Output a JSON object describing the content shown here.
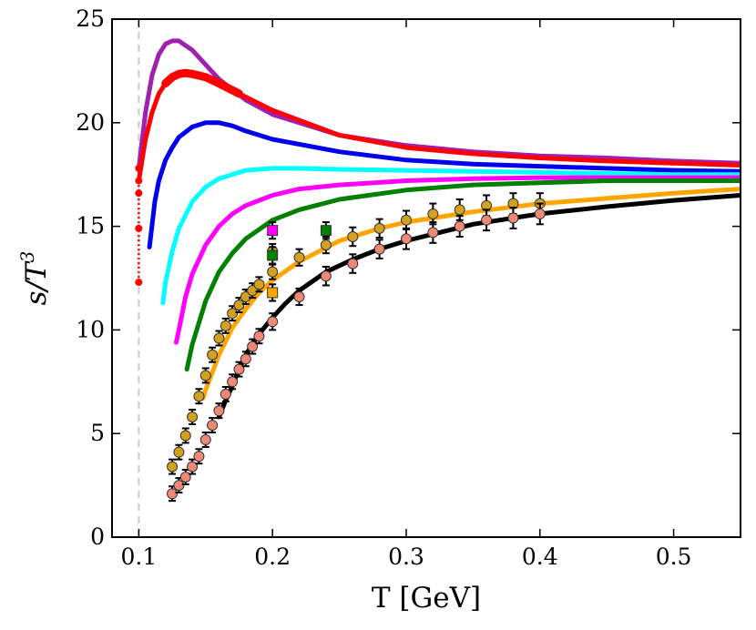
{
  "chart_data": {
    "type": "line",
    "xlabel": "T [GeV]",
    "ylabel": {
      "base": "s/T",
      "superscript": "3"
    },
    "xlim": [
      0.08,
      0.55
    ],
    "ylim": [
      0,
      25
    ],
    "xticks": [
      0.1,
      0.2,
      0.3,
      0.4,
      0.5
    ],
    "xtick_labels": [
      "0.1",
      "0.2",
      "0.3",
      "0.4",
      "0.5"
    ],
    "yticks": [
      0,
      5,
      10,
      15,
      20,
      25
    ],
    "ytick_labels": [
      "0",
      "5",
      "10",
      "15",
      "20",
      "25"
    ],
    "grid": false,
    "vline": {
      "x": 0.1,
      "color": "#cccccc",
      "style": "dashed"
    },
    "series": [
      {
        "color": "#a020b0",
        "width": 5,
        "x": [
          0.1,
          0.105,
          0.11,
          0.115,
          0.12,
          0.125,
          0.13,
          0.14,
          0.15,
          0.16,
          0.18,
          0.2,
          0.25,
          0.3,
          0.35,
          0.4,
          0.45,
          0.5,
          0.55
        ],
        "y": [
          17.8,
          20.5,
          22.3,
          23.3,
          23.8,
          23.95,
          23.95,
          23.5,
          22.8,
          22.1,
          21.1,
          20.4,
          19.4,
          18.9,
          18.6,
          18.4,
          18.3,
          18.15,
          18.05
        ]
      },
      {
        "color": "#ff0000",
        "width": 5,
        "x": [
          0.1,
          0.105,
          0.11,
          0.115,
          0.12,
          0.125,
          0.13,
          0.135,
          0.14,
          0.15,
          0.16,
          0.175,
          0.2,
          0.25,
          0.3,
          0.35,
          0.4,
          0.45,
          0.5,
          0.55
        ],
        "y": [
          17.2,
          19.2,
          20.5,
          21.4,
          21.9,
          22.2,
          22.35,
          22.4,
          22.35,
          22.2,
          21.9,
          21.4,
          20.6,
          19.4,
          18.8,
          18.5,
          18.3,
          18.15,
          18.05,
          17.95
        ]
      },
      {
        "color": "#ff0000",
        "width": 9,
        "x": [
          0.12,
          0.125,
          0.13,
          0.135,
          0.14,
          0.15,
          0.16,
          0.175
        ],
        "y": [
          21.9,
          22.2,
          22.35,
          22.4,
          22.35,
          22.2,
          21.9,
          21.4
        ]
      },
      {
        "color": "#0000ee",
        "width": 5,
        "x": [
          0.108,
          0.112,
          0.115,
          0.12,
          0.125,
          0.13,
          0.14,
          0.15,
          0.16,
          0.17,
          0.18,
          0.2,
          0.25,
          0.3,
          0.35,
          0.4,
          0.45,
          0.5,
          0.55
        ],
        "y": [
          14.0,
          16.2,
          17.2,
          18.2,
          18.8,
          19.3,
          19.8,
          20.0,
          20.0,
          19.85,
          19.6,
          19.2,
          18.6,
          18.2,
          18.0,
          17.9,
          17.8,
          17.7,
          17.65
        ]
      },
      {
        "color": "#00ffff",
        "width": 5,
        "x": [
          0.118,
          0.12,
          0.125,
          0.13,
          0.14,
          0.15,
          0.16,
          0.18,
          0.2,
          0.22,
          0.25,
          0.3,
          0.35,
          0.4,
          0.45,
          0.5,
          0.55
        ],
        "y": [
          11.3,
          12.3,
          13.8,
          14.9,
          16.2,
          16.9,
          17.3,
          17.7,
          17.8,
          17.8,
          17.75,
          17.7,
          17.65,
          17.6,
          17.55,
          17.5,
          17.5
        ]
      },
      {
        "color": "#ff00ff",
        "width": 5,
        "x": [
          0.128,
          0.13,
          0.135,
          0.14,
          0.15,
          0.16,
          0.17,
          0.18,
          0.2,
          0.22,
          0.25,
          0.3,
          0.35,
          0.4,
          0.45,
          0.5,
          0.55
        ],
        "y": [
          9.4,
          10.0,
          11.6,
          12.7,
          14.1,
          15.0,
          15.6,
          16.0,
          16.5,
          16.8,
          17.0,
          17.2,
          17.3,
          17.35,
          17.35,
          17.35,
          17.35
        ]
      },
      {
        "color": "#008000",
        "width": 5,
        "x": [
          0.136,
          0.14,
          0.15,
          0.16,
          0.17,
          0.18,
          0.2,
          0.22,
          0.25,
          0.3,
          0.35,
          0.4,
          0.45,
          0.5,
          0.55
        ],
        "y": [
          8.1,
          9.3,
          11.4,
          12.8,
          13.7,
          14.4,
          15.3,
          15.8,
          16.3,
          16.75,
          17.0,
          17.1,
          17.2,
          17.2,
          17.2
        ]
      },
      {
        "color": "#ffa500",
        "width": 5,
        "x": [
          0.148,
          0.15,
          0.16,
          0.17,
          0.18,
          0.19,
          0.2,
          0.22,
          0.25,
          0.28,
          0.3,
          0.35,
          0.4,
          0.45,
          0.5,
          0.55
        ],
        "y": [
          6.7,
          7.1,
          8.8,
          10.1,
          11.0,
          11.8,
          12.4,
          13.3,
          14.3,
          14.9,
          15.2,
          15.7,
          16.1,
          16.35,
          16.6,
          16.8
        ]
      },
      {
        "color": "#000000",
        "width": 5,
        "x": [
          0.16,
          0.165,
          0.17,
          0.175,
          0.18,
          0.19,
          0.2,
          0.21,
          0.22,
          0.24,
          0.26,
          0.28,
          0.3,
          0.35,
          0.4,
          0.45,
          0.5,
          0.55
        ],
        "y": [
          5.8,
          6.6,
          7.3,
          8.1,
          8.8,
          9.8,
          10.6,
          11.3,
          11.9,
          12.8,
          13.4,
          13.9,
          14.3,
          15.1,
          15.6,
          15.95,
          16.25,
          16.5
        ]
      }
    ],
    "dotted_series": [
      {
        "color": "#ff0000",
        "x": [
          0.1,
          0.1,
          0.1,
          0.1,
          0.1
        ],
        "y": [
          12.3,
          14.9,
          16.6,
          17.2,
          17.8
        ]
      }
    ],
    "scatter_series": [
      {
        "marker": "circle",
        "color": "#d4a020",
        "edge": "#333333",
        "x": [
          0.125,
          0.13,
          0.135,
          0.14,
          0.145,
          0.15,
          0.155,
          0.16,
          0.165,
          0.17,
          0.175,
          0.18,
          0.185,
          0.19,
          0.2,
          0.2,
          0.22,
          0.24,
          0.26,
          0.28,
          0.3,
          0.32,
          0.34,
          0.36,
          0.38,
          0.4
        ],
        "y": [
          3.4,
          4.1,
          4.9,
          5.8,
          6.8,
          7.8,
          8.8,
          9.6,
          10.2,
          10.8,
          11.2,
          11.6,
          11.9,
          12.2,
          12.8,
          13.8,
          13.5,
          14.1,
          14.5,
          14.9,
          15.3,
          15.6,
          15.8,
          16.0,
          16.1,
          16.1
        ],
        "err": [
          0.35,
          0.35,
          0.35,
          0.35,
          0.35,
          0.35,
          0.35,
          0.35,
          0.35,
          0.35,
          0.35,
          0.35,
          0.35,
          0.35,
          0.35,
          0.35,
          0.4,
          0.4,
          0.45,
          0.45,
          0.45,
          0.5,
          0.5,
          0.5,
          0.5,
          0.5
        ]
      },
      {
        "marker": "circle",
        "color": "#f08878",
        "edge": "#333333",
        "x": [
          0.125,
          0.13,
          0.135,
          0.14,
          0.145,
          0.15,
          0.155,
          0.16,
          0.165,
          0.17,
          0.175,
          0.18,
          0.185,
          0.19,
          0.2,
          0.22,
          0.24,
          0.26,
          0.28,
          0.3,
          0.32,
          0.34,
          0.36,
          0.38,
          0.4
        ],
        "y": [
          2.1,
          2.5,
          2.9,
          3.4,
          3.9,
          4.7,
          5.4,
          6.1,
          6.9,
          7.5,
          8.1,
          8.6,
          9.2,
          9.7,
          10.4,
          11.6,
          12.6,
          13.2,
          13.9,
          14.4,
          14.7,
          15.0,
          15.3,
          15.4,
          15.6
        ],
        "err": [
          0.35,
          0.35,
          0.35,
          0.35,
          0.35,
          0.35,
          0.35,
          0.35,
          0.35,
          0.35,
          0.35,
          0.35,
          0.35,
          0.35,
          0.4,
          0.4,
          0.45,
          0.45,
          0.45,
          0.5,
          0.5,
          0.5,
          0.5,
          0.5,
          0.5
        ]
      },
      {
        "marker": "square",
        "color": "#ff00ff",
        "edge": "#333333",
        "x": [
          0.2
        ],
        "y": [
          14.8
        ],
        "err": [
          0.4
        ]
      },
      {
        "marker": "square",
        "color": "#008000",
        "edge": "#333333",
        "x": [
          0.2,
          0.24
        ],
        "y": [
          13.6,
          14.8
        ],
        "err": [
          0.4,
          0.4
        ]
      },
      {
        "marker": "square",
        "color": "#ffa500",
        "edge": "#333333",
        "x": [
          0.2
        ],
        "y": [
          11.8
        ],
        "err": [
          0.4
        ]
      }
    ]
  }
}
